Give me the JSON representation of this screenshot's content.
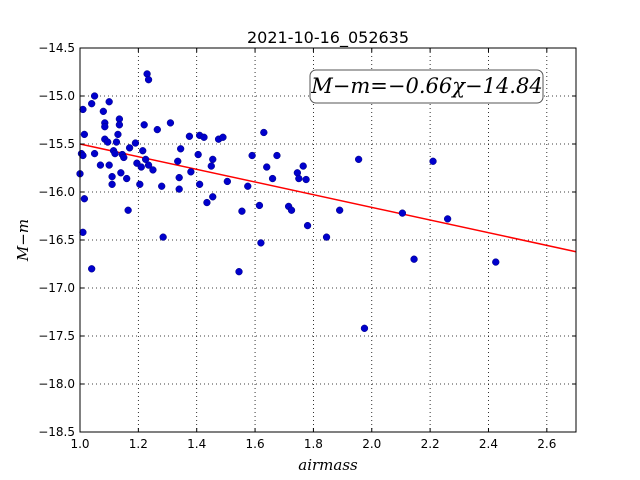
{
  "chart_data": {
    "type": "scatter",
    "title": "2021-10-16_052635",
    "xlabel": "airmass",
    "ylabel": "M−m",
    "xlim": [
      1.0,
      2.7
    ],
    "ylim": [
      -18.5,
      -14.5
    ],
    "y_inverted": true,
    "grid": true,
    "xticks": [
      1.0,
      1.2,
      1.4,
      1.6,
      1.8,
      2.0,
      2.2,
      2.4,
      2.6
    ],
    "xtick_labels": [
      "1.0",
      "1.2",
      "1.4",
      "1.6",
      "1.8",
      "2.0",
      "2.2",
      "2.4",
      "2.6"
    ],
    "yticks": [
      -14.5,
      -15.0,
      -15.5,
      -16.0,
      -16.5,
      -17.0,
      -17.5,
      -18.0,
      -18.5
    ],
    "ytick_labels": [
      "−14.5",
      "−15.0",
      "−15.5",
      "−16.0",
      "−16.5",
      "−17.0",
      "−17.5",
      "−18.0",
      "−18.5"
    ],
    "annotation": "M−m=−0.66χ−14.84",
    "fit": {
      "slope": -0.66,
      "intercept": -14.84,
      "x_range": [
        1.0,
        2.7
      ],
      "color": "#ff0000"
    },
    "marker_color": "#0000cc",
    "points": [
      [
        1.0,
        -15.81
      ],
      [
        1.005,
        -15.6
      ],
      [
        1.01,
        -15.14
      ],
      [
        1.01,
        -15.62
      ],
      [
        1.01,
        -16.42
      ],
      [
        1.015,
        -15.4
      ],
      [
        1.015,
        -16.07
      ],
      [
        1.04,
        -15.08
      ],
      [
        1.04,
        -16.8
      ],
      [
        1.05,
        -15.0
      ],
      [
        1.05,
        -15.6
      ],
      [
        1.07,
        -15.72
      ],
      [
        1.08,
        -15.16
      ],
      [
        1.085,
        -15.28
      ],
      [
        1.085,
        -15.32
      ],
      [
        1.085,
        -15.45
      ],
      [
        1.095,
        -15.48
      ],
      [
        1.1,
        -15.06
      ],
      [
        1.1,
        -15.72
      ],
      [
        1.11,
        -15.92
      ],
      [
        1.11,
        -15.84
      ],
      [
        1.115,
        -15.57
      ],
      [
        1.12,
        -15.6
      ],
      [
        1.125,
        -15.48
      ],
      [
        1.13,
        -15.4
      ],
      [
        1.135,
        -15.24
      ],
      [
        1.135,
        -15.3
      ],
      [
        1.14,
        -15.8
      ],
      [
        1.145,
        -15.61
      ],
      [
        1.15,
        -15.64
      ],
      [
        1.16,
        -15.86
      ],
      [
        1.165,
        -16.19
      ],
      [
        1.17,
        -15.54
      ],
      [
        1.19,
        -15.49
      ],
      [
        1.195,
        -15.7
      ],
      [
        1.205,
        -15.92
      ],
      [
        1.21,
        -15.74
      ],
      [
        1.215,
        -15.57
      ],
      [
        1.22,
        -15.3
      ],
      [
        1.225,
        -15.66
      ],
      [
        1.23,
        -14.77
      ],
      [
        1.235,
        -14.83
      ],
      [
        1.235,
        -15.72
      ],
      [
        1.25,
        -15.77
      ],
      [
        1.265,
        -15.35
      ],
      [
        1.28,
        -15.94
      ],
      [
        1.285,
        -16.47
      ],
      [
        1.31,
        -15.28
      ],
      [
        1.335,
        -15.68
      ],
      [
        1.34,
        -15.85
      ],
      [
        1.34,
        -15.97
      ],
      [
        1.345,
        -15.55
      ],
      [
        1.375,
        -15.42
      ],
      [
        1.38,
        -15.79
      ],
      [
        1.405,
        -15.61
      ],
      [
        1.41,
        -15.41
      ],
      [
        1.41,
        -15.92
      ],
      [
        1.425,
        -15.43
      ],
      [
        1.435,
        -16.11
      ],
      [
        1.45,
        -15.73
      ],
      [
        1.455,
        -15.66
      ],
      [
        1.455,
        -16.05
      ],
      [
        1.475,
        -15.45
      ],
      [
        1.49,
        -15.43
      ],
      [
        1.505,
        -15.89
      ],
      [
        1.545,
        -16.83
      ],
      [
        1.555,
        -16.2
      ],
      [
        1.575,
        -15.94
      ],
      [
        1.59,
        -15.62
      ],
      [
        1.615,
        -16.14
      ],
      [
        1.62,
        -16.53
      ],
      [
        1.63,
        -15.38
      ],
      [
        1.64,
        -15.74
      ],
      [
        1.66,
        -15.86
      ],
      [
        1.675,
        -15.62
      ],
      [
        1.715,
        -16.15
      ],
      [
        1.725,
        -16.19
      ],
      [
        1.745,
        -15.8
      ],
      [
        1.75,
        -15.86
      ],
      [
        1.765,
        -15.73
      ],
      [
        1.775,
        -15.87
      ],
      [
        1.78,
        -16.35
      ],
      [
        1.845,
        -16.47
      ],
      [
        1.89,
        -16.19
      ],
      [
        1.955,
        -15.66
      ],
      [
        1.975,
        -17.42
      ],
      [
        2.105,
        -16.22
      ],
      [
        2.145,
        -16.7
      ],
      [
        2.21,
        -15.68
      ],
      [
        2.26,
        -16.28
      ],
      [
        2.425,
        -16.73
      ]
    ]
  }
}
